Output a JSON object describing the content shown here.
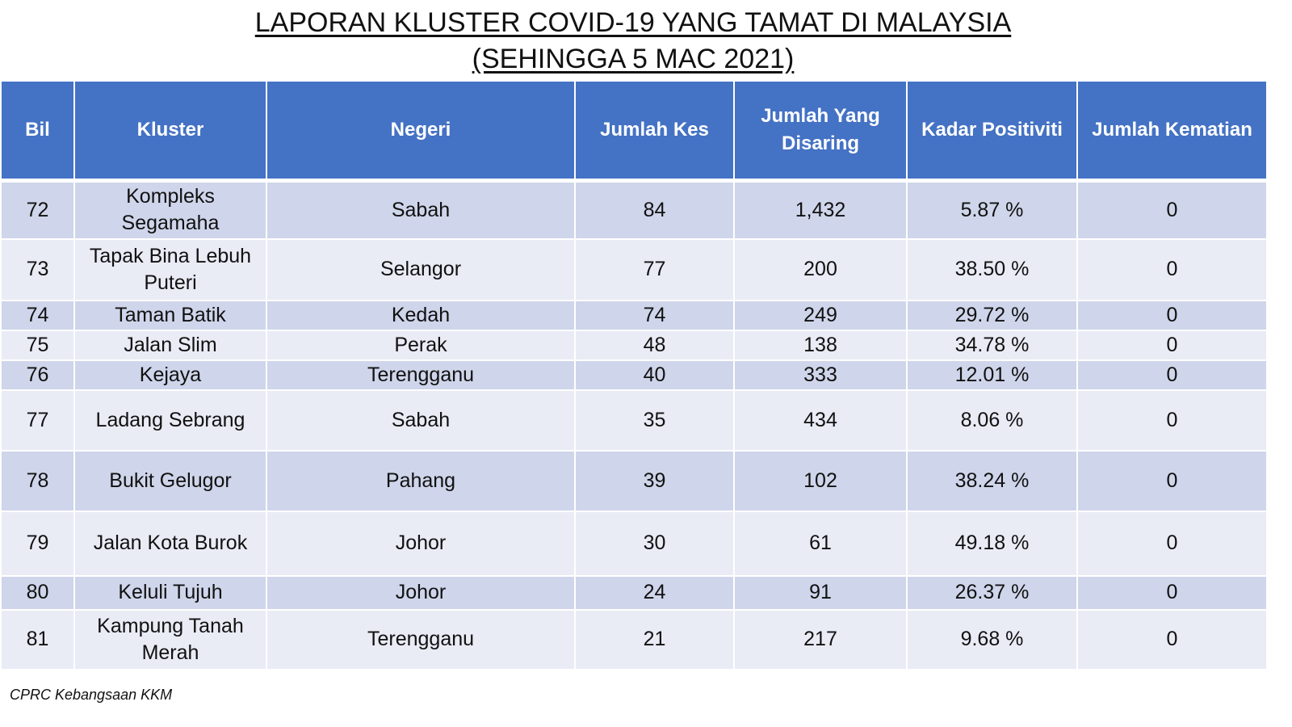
{
  "title_line1": "LAPORAN KLUSTER COVID-19 YANG TAMAT DI MALAYSIA",
  "title_line2": "(SEHINGGA  5 MAC 2021)",
  "headers": {
    "bil": "Bil",
    "kluster": "Kluster",
    "negeri": "Negeri",
    "jumlah_kes": "Jumlah Kes",
    "jumlah_disaring_1": "Jumlah Yang",
    "jumlah_disaring_2": "Disaring",
    "kadar_positiviti": "Kadar Positiviti",
    "jumlah_kematian": "Jumlah Kematian"
  },
  "rows": [
    {
      "bil": "72",
      "kluster": [
        "Kompleks Segamaha"
      ],
      "negeri": "Sabah",
      "kes": "84",
      "disaring": "1,432",
      "positiviti": "5.87 %",
      "kematian": "0"
    },
    {
      "bil": "73",
      "kluster": [
        "Tapak Bina Lebuh",
        "Puteri"
      ],
      "negeri": "Selangor",
      "kes": "77",
      "disaring": "200",
      "positiviti": "38.50 %",
      "kematian": "0"
    },
    {
      "bil": "74",
      "kluster": [
        "Taman Batik"
      ],
      "negeri": "Kedah",
      "kes": "74",
      "disaring": "249",
      "positiviti": "29.72 %",
      "kematian": "0"
    },
    {
      "bil": "75",
      "kluster": [
        "Jalan Slim"
      ],
      "negeri": "Perak",
      "kes": "48",
      "disaring": "138",
      "positiviti": "34.78 %",
      "kematian": "0"
    },
    {
      "bil": "76",
      "kluster": [
        "Kejaya"
      ],
      "negeri": "Terengganu",
      "kes": "40",
      "disaring": "333",
      "positiviti": "12.01 %",
      "kematian": "0"
    },
    {
      "bil": "77",
      "kluster": [
        "Ladang Sebrang"
      ],
      "negeri": "Sabah",
      "kes": "35",
      "disaring": "434",
      "positiviti": "8.06 %",
      "kematian": "0"
    },
    {
      "bil": "78",
      "kluster": [
        "Bukit Gelugor"
      ],
      "negeri": "Pahang",
      "kes": "39",
      "disaring": "102",
      "positiviti": "38.24 %",
      "kematian": "0"
    },
    {
      "bil": "79",
      "kluster": [
        "Jalan Kota Burok"
      ],
      "negeri": "Johor",
      "kes": "30",
      "disaring": "61",
      "positiviti": "49.18 %",
      "kematian": "0"
    },
    {
      "bil": "80",
      "kluster": [
        "Keluli Tujuh"
      ],
      "negeri": "Johor",
      "kes": "24",
      "disaring": "91",
      "positiviti": "26.37 %",
      "kematian": "0"
    },
    {
      "bil": "81",
      "kluster": [
        "Kampung Tanah",
        "Merah"
      ],
      "negeri": "Terengganu",
      "kes": "21",
      "disaring": "217",
      "positiviti": "9.68 %",
      "kematian": "0"
    }
  ],
  "footer": "CPRC Kebangsaan KKM",
  "colors": {
    "header_bg": "#4472c4",
    "row_odd": "#cfd5ea",
    "row_even": "#e9ebf5"
  }
}
